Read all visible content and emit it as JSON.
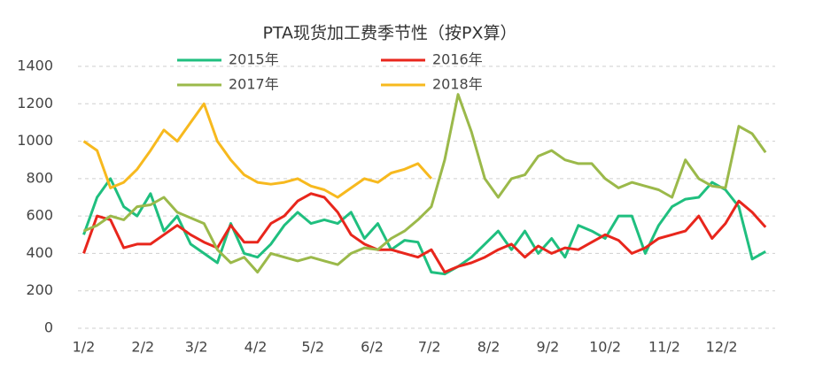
{
  "chart_data": {
    "type": "line",
    "title": "PTA现货加工费季节性（按PX算）",
    "x": [
      0,
      7,
      14,
      21,
      28,
      35,
      42,
      49,
      56,
      63,
      70,
      77,
      84,
      91,
      98,
      105,
      112,
      119,
      126,
      133,
      140,
      147,
      154,
      161,
      168,
      175,
      182,
      189,
      196,
      203,
      210,
      217,
      224,
      231,
      238,
      245,
      252,
      259,
      266,
      273,
      280,
      287,
      294,
      301,
      308,
      315,
      322,
      329,
      336,
      343,
      350,
      357
    ],
    "xlim": [
      -3,
      362
    ],
    "xticks": [
      {
        "value": 0,
        "label": "1/2"
      },
      {
        "value": 31,
        "label": "2/2"
      },
      {
        "value": 59,
        "label": "3/2"
      },
      {
        "value": 90,
        "label": "4/2"
      },
      {
        "value": 120,
        "label": "5/2"
      },
      {
        "value": 151,
        "label": "6/2"
      },
      {
        "value": 181,
        "label": "7/2"
      },
      {
        "value": 212,
        "label": "8/2"
      },
      {
        "value": 243,
        "label": "9/2"
      },
      {
        "value": 273,
        "label": "10/2"
      },
      {
        "value": 304,
        "label": "11/2"
      },
      {
        "value": 334,
        "label": "12/2"
      }
    ],
    "ylim": [
      0,
      1400
    ],
    "yticks": [
      0,
      200,
      400,
      600,
      800,
      1000,
      1200,
      1400
    ],
    "grid": true,
    "series": [
      {
        "name": "2015年",
        "color": "#1fbf7f",
        "values": [
          500,
          700,
          800,
          650,
          600,
          720,
          520,
          600,
          450,
          400,
          350,
          560,
          400,
          380,
          450,
          550,
          620,
          560,
          580,
          560,
          620,
          480,
          560,
          420,
          470,
          460,
          300,
          290,
          330,
          380,
          450,
          520,
          420,
          520,
          400,
          480,
          380,
          550,
          520,
          480,
          600,
          600,
          400,
          550,
          650,
          690,
          700,
          780,
          740,
          650,
          370,
          410
        ]
      },
      {
        "name": "2016年",
        "color": "#e8261c",
        "values": [
          400,
          600,
          580,
          430,
          450,
          450,
          500,
          550,
          500,
          460,
          430,
          550,
          460,
          460,
          560,
          600,
          680,
          720,
          700,
          620,
          500,
          450,
          420,
          420,
          400,
          380,
          420,
          300,
          330,
          350,
          380,
          420,
          450,
          380,
          440,
          400,
          430,
          420,
          460,
          500,
          470,
          400,
          430,
          480,
          500,
          520,
          600,
          480,
          560,
          680,
          620,
          540
        ]
      },
      {
        "name": "2017年",
        "color": "#9bb94a",
        "values": [
          520,
          550,
          600,
          580,
          650,
          660,
          700,
          620,
          590,
          560,
          420,
          350,
          380,
          300,
          400,
          380,
          360,
          380,
          360,
          340,
          400,
          430,
          420,
          480,
          520,
          580,
          650,
          900,
          1250,
          1050,
          800,
          700,
          800,
          820,
          920,
          950,
          900,
          880,
          880,
          800,
          750,
          780,
          760,
          740,
          700,
          900,
          800,
          760,
          750,
          1080,
          1040,
          940
        ]
      },
      {
        "name": "2018年",
        "color": "#f7b91e",
        "values": [
          1000,
          950,
          750,
          780,
          850,
          950,
          1060,
          1000,
          1100,
          1200,
          1000,
          900,
          820,
          780,
          770,
          780,
          800,
          760,
          740,
          700,
          750,
          800,
          780,
          830,
          850,
          880,
          800,
          null,
          null,
          null,
          null,
          null,
          null,
          null,
          null,
          null,
          null,
          null,
          null,
          null,
          null,
          null,
          null,
          null,
          null,
          null,
          null,
          null,
          null,
          null,
          null,
          null
        ]
      }
    ]
  }
}
